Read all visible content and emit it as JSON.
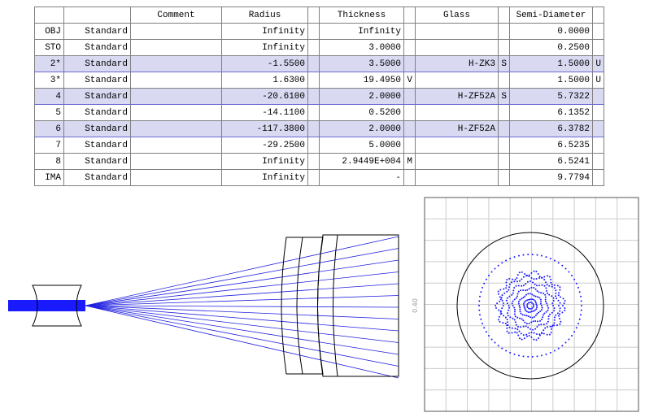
{
  "table": {
    "headers": {
      "comment": "Comment",
      "radius": "Radius",
      "thickness": "Thickness",
      "glass": "Glass",
      "semi_diameter": "Semi-Diameter"
    },
    "rows": [
      {
        "surface": "OBJ",
        "type": "Standard",
        "radius": "Infinity",
        "thickness": "Infinity",
        "semi_diameter": "0.0000"
      },
      {
        "surface": "STO",
        "type": "Standard",
        "radius": "Infinity",
        "thickness": "3.0000",
        "semi_diameter": "0.2500"
      },
      {
        "surface": "2*",
        "type": "Standard",
        "radius": "-1.5500",
        "thickness": "3.5000",
        "glass": "H-ZK3",
        "glass_solve": "S",
        "semi_diameter": "1.5000",
        "semi_diameter_solve": "U",
        "highlight": true
      },
      {
        "surface": "3*",
        "type": "Standard",
        "radius": "1.6300",
        "thickness": "19.4950",
        "thickness_solve": "V",
        "semi_diameter": "1.5000",
        "semi_diameter_solve": "U"
      },
      {
        "surface": "4",
        "type": "Standard",
        "radius": "-20.6100",
        "thickness": "2.0000",
        "glass": "H-ZF52A",
        "glass_solve": "S",
        "semi_diameter": "5.7322",
        "highlight": true
      },
      {
        "surface": "5",
        "type": "Standard",
        "radius": "-14.1100",
        "thickness": "0.5200",
        "semi_diameter": "6.1352"
      },
      {
        "surface": "6",
        "type": "Standard",
        "radius": "-117.3800",
        "thickness": "2.0000",
        "glass": "H-ZF52A",
        "semi_diameter": "6.3782",
        "highlight": true
      },
      {
        "surface": "7",
        "type": "Standard",
        "radius": "-29.2500",
        "thickness": "5.0000",
        "semi_diameter": "6.5235"
      },
      {
        "surface": "8",
        "type": "Standard",
        "radius": "Infinity",
        "thickness": "2.9449E+004",
        "thickness_solve": "M",
        "semi_diameter": "6.5241"
      },
      {
        "surface": "IMA",
        "type": "Standard",
        "radius": "Infinity",
        "thickness": "-",
        "semi_diameter": "9.7794"
      }
    ]
  },
  "spot_diagram": {
    "scale_label": "0.40"
  }
}
